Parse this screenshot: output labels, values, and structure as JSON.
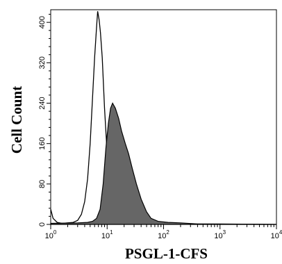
{
  "chart_data": {
    "type": "area",
    "xlabel": "PSGL-1-CFS",
    "ylabel": "Cell Count",
    "x_scale": "log",
    "xlim": [
      1,
      10000
    ],
    "ylim": [
      0,
      425
    ],
    "x_ticks": [
      {
        "value": 1,
        "base": "10",
        "exp": "0"
      },
      {
        "value": 10,
        "base": "10",
        "exp": "1"
      },
      {
        "value": 100,
        "base": "10",
        "exp": "2"
      },
      {
        "value": 1000,
        "base": "10",
        "exp": "3"
      },
      {
        "value": 10000,
        "base": "10",
        "exp": "4"
      }
    ],
    "y_ticks": [
      "0",
      "80",
      "160",
      "240",
      "320",
      "400"
    ],
    "grid": false,
    "legend": "none",
    "series": [
      {
        "style": "outline",
        "color": "#000000",
        "points": [
          [
            1,
            30
          ],
          [
            1.1,
            12
          ],
          [
            1.3,
            4
          ],
          [
            1.6,
            2
          ],
          [
            2.0,
            3
          ],
          [
            2.5,
            4
          ],
          [
            3.0,
            8
          ],
          [
            3.5,
            20
          ],
          [
            4.0,
            45
          ],
          [
            4.5,
            90
          ],
          [
            5.0,
            160
          ],
          [
            5.5,
            250
          ],
          [
            6.0,
            330
          ],
          [
            6.5,
            390
          ],
          [
            6.8,
            422
          ],
          [
            7.2,
            405
          ],
          [
            7.6,
            380
          ],
          [
            8.2,
            330
          ],
          [
            9.0,
            230
          ],
          [
            10,
            140
          ],
          [
            11,
            80
          ],
          [
            12.5,
            40
          ],
          [
            14,
            18
          ],
          [
            16,
            8
          ],
          [
            20,
            3
          ],
          [
            30,
            1
          ],
          [
            100,
            1
          ],
          [
            10000,
            0
          ]
        ]
      },
      {
        "style": "filled",
        "color": "#666666",
        "points": [
          [
            1,
            2
          ],
          [
            3,
            3
          ],
          [
            4.5,
            4
          ],
          [
            5.5,
            6
          ],
          [
            6.5,
            12
          ],
          [
            7.5,
            30
          ],
          [
            8.5,
            80
          ],
          [
            9.5,
            150
          ],
          [
            10.5,
            200
          ],
          [
            11.5,
            230
          ],
          [
            12.5,
            240
          ],
          [
            14,
            230
          ],
          [
            16,
            210
          ],
          [
            18,
            185
          ],
          [
            21,
            160
          ],
          [
            24,
            140
          ],
          [
            28,
            110
          ],
          [
            33,
            80
          ],
          [
            40,
            50
          ],
          [
            50,
            25
          ],
          [
            60,
            12
          ],
          [
            80,
            6
          ],
          [
            120,
            4
          ],
          [
            200,
            3
          ],
          [
            400,
            1
          ],
          [
            1000,
            1
          ],
          [
            10000,
            0
          ]
        ]
      }
    ]
  }
}
